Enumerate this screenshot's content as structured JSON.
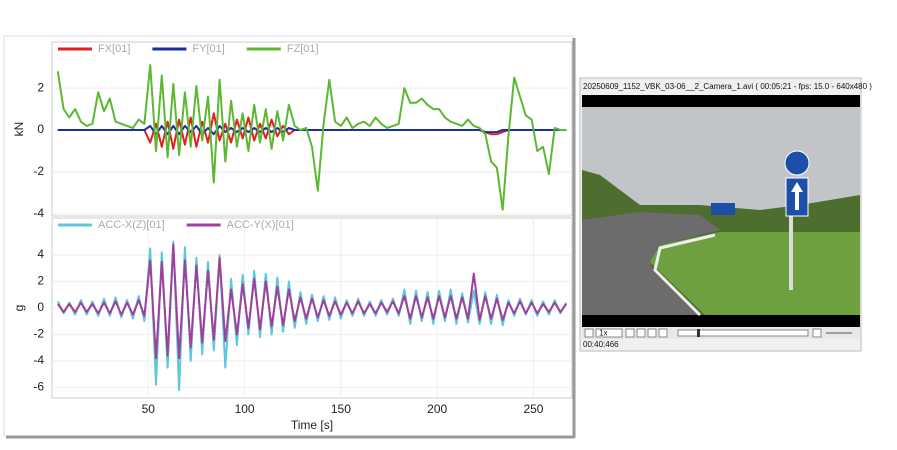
{
  "chart_data": [
    {
      "type": "line",
      "y_label": "kN",
      "x": [
        3,
        6,
        9,
        12,
        15,
        18,
        21,
        24,
        27,
        30,
        33,
        36,
        39,
        42,
        45,
        48,
        51,
        54,
        57,
        60,
        63,
        66,
        69,
        72,
        75,
        78,
        81,
        84,
        87,
        90,
        93,
        96,
        99,
        102,
        105,
        108,
        111,
        114,
        117,
        120,
        123,
        126,
        129,
        132,
        135,
        138,
        141,
        144,
        147,
        150,
        153,
        156,
        159,
        162,
        165,
        168,
        171,
        174,
        177,
        180,
        183,
        186,
        189,
        192,
        195,
        198,
        201,
        204,
        207,
        210,
        213,
        216,
        219,
        222,
        225,
        228,
        231,
        234,
        237,
        240,
        243,
        246,
        249,
        252,
        255,
        258,
        261,
        264,
        267
      ],
      "series": [
        {
          "name": "FX[01]",
          "color": "#e02020",
          "values": [
            0,
            0,
            0,
            0,
            0,
            0,
            0,
            0,
            0,
            0,
            0,
            0,
            0,
            0,
            0,
            0,
            -0.6,
            0.3,
            -0.8,
            0.4,
            -0.9,
            0.5,
            -0.7,
            0.6,
            -0.8,
            0.4,
            -0.6,
            0.8,
            -0.5,
            0.3,
            -0.6,
            0.5,
            -0.4,
            0.6,
            -0.5,
            0.3,
            -0.4,
            0.5,
            -0.3,
            0.2,
            -0.2,
            0,
            0,
            0,
            0,
            0,
            0,
            0,
            0,
            0,
            0,
            0,
            0,
            0,
            0,
            0,
            0,
            0,
            0,
            0,
            0,
            0,
            0,
            0,
            0,
            0,
            0,
            0,
            0,
            0,
            0,
            0,
            0,
            0,
            -0.1,
            -0.2,
            -0.2,
            -0.1,
            0,
            0,
            0,
            0,
            0,
            0,
            0,
            0,
            0,
            0,
            0
          ]
        },
        {
          "name": "FY[01]",
          "color": "#1a2fa0",
          "values": [
            0,
            0,
            0,
            0,
            0,
            0,
            0,
            0,
            0,
            0,
            0,
            0,
            0,
            0,
            0,
            0,
            0.2,
            -0.2,
            0.2,
            -0.2,
            0.2,
            -0.2,
            0.2,
            -0.1,
            0.2,
            -0.2,
            0.1,
            -0.2,
            0.2,
            -0.1,
            0.1,
            -0.1,
            0.1,
            -0.1,
            0.1,
            -0.1,
            0.1,
            -0.1,
            0.1,
            -0.1,
            0.1,
            0,
            0,
            0,
            0,
            0,
            0,
            0,
            0,
            0,
            0,
            0,
            0,
            0,
            0,
            0,
            0,
            0,
            0,
            0,
            0,
            0,
            0,
            0,
            0,
            0,
            0,
            0,
            0,
            0,
            0,
            0,
            0,
            0,
            -0.1,
            -0.1,
            -0.1,
            0,
            0,
            0,
            0,
            0,
            0,
            0,
            0,
            0,
            0,
            0,
            0
          ]
        },
        {
          "name": "FZ[01]",
          "color": "#5cb832",
          "values": [
            2.8,
            1.0,
            0.6,
            1.0,
            0.4,
            0.2,
            0.3,
            1.8,
            0.9,
            1.5,
            0.4,
            0.3,
            0.2,
            0.1,
            0.5,
            0.3,
            3.1,
            -1.0,
            2.6,
            -1.3,
            2.2,
            -1.2,
            1.8,
            -0.8,
            2.1,
            -0.5,
            1.6,
            -2.5,
            2.4,
            -1.5,
            1.4,
            -0.8,
            0.8,
            -1.0,
            1.2,
            -0.6,
            1.0,
            -0.9,
            0.9,
            -0.5,
            1.2,
            0.2,
            0.0,
            0.1,
            -0.8,
            -2.9,
            0.3,
            2.4,
            0.4,
            0.2,
            0.6,
            0.1,
            0.3,
            0.4,
            0.2,
            0.6,
            0.3,
            0.1,
            0.2,
            0.3,
            2.0,
            1.3,
            1.3,
            1.5,
            1.2,
            1.0,
            1.0,
            0.6,
            0.4,
            0.3,
            0.2,
            0.5,
            0.2,
            0.1,
            -0.2,
            -1.5,
            -1.8,
            -3.8,
            -0.3,
            2.5,
            1.6,
            0.7,
            0.5,
            -1.0,
            -0.8,
            -2.1,
            0.1,
            0.0,
            0.0
          ]
        }
      ],
      "xlim": [
        0,
        270
      ],
      "ylim": [
        -4.1,
        4.2
      ],
      "yticks": [
        -4,
        -2,
        0,
        2
      ]
    },
    {
      "type": "line",
      "y_label": "g",
      "x_label": "Time [s]",
      "x": [
        3,
        6,
        9,
        12,
        15,
        18,
        21,
        24,
        27,
        30,
        33,
        36,
        39,
        42,
        45,
        48,
        51,
        54,
        57,
        60,
        63,
        66,
        69,
        72,
        75,
        78,
        81,
        84,
        87,
        90,
        93,
        96,
        99,
        102,
        105,
        108,
        111,
        114,
        117,
        120,
        123,
        126,
        129,
        132,
        135,
        138,
        141,
        144,
        147,
        150,
        153,
        156,
        159,
        162,
        165,
        168,
        171,
        174,
        177,
        180,
        183,
        186,
        189,
        192,
        195,
        198,
        201,
        204,
        207,
        210,
        213,
        216,
        219,
        222,
        225,
        228,
        231,
        234,
        237,
        240,
        243,
        246,
        249,
        252,
        255,
        258,
        261,
        264,
        267
      ],
      "series": [
        {
          "name": "ACC-X(Z)[01]",
          "color": "#5cc8d8",
          "values": [
            0.5,
            -0.4,
            0.4,
            -0.5,
            0.6,
            -0.5,
            0.5,
            -0.6,
            0.7,
            -0.6,
            0.8,
            -0.7,
            0.6,
            -0.8,
            0.9,
            -1.0,
            4.5,
            -5.8,
            4.2,
            -4.5,
            5.0,
            -6.2,
            4.6,
            -4.0,
            3.8,
            -3.5,
            3.5,
            -3.2,
            4.0,
            -4.5,
            2.2,
            -2.8,
            2.5,
            -2.0,
            2.8,
            -2.2,
            2.6,
            -2.0,
            2.3,
            -1.8,
            2.0,
            -1.5,
            1.2,
            -1.2,
            1.0,
            -1.0,
            0.9,
            -0.9,
            0.8,
            -0.8,
            0.6,
            -0.6,
            0.7,
            -0.6,
            0.5,
            -0.6,
            0.6,
            -0.5,
            0.7,
            -0.6,
            1.4,
            -1.2,
            1.3,
            -1.0,
            1.2,
            -1.2,
            1.3,
            -1.0,
            1.4,
            -1.2,
            1.1,
            -1.1,
            1.3,
            -1.2,
            1.2,
            -1.2,
            1.0,
            -1.3,
            0.6,
            -0.6,
            0.7,
            -0.5,
            0.6,
            -0.6,
            0.5,
            -0.5,
            0.6,
            -0.4,
            0.4
          ]
        },
        {
          "name": "ACC-Y(X)[01]",
          "color": "#a0409a",
          "values": [
            0.3,
            -0.3,
            0.3,
            -0.3,
            0.4,
            -0.3,
            0.3,
            -0.4,
            0.4,
            -0.4,
            0.5,
            -0.5,
            0.4,
            -0.5,
            0.6,
            -0.6,
            3.6,
            -3.8,
            3.5,
            -3.6,
            4.8,
            -3.8,
            3.6,
            -3.0,
            3.2,
            -2.6,
            2.8,
            -2.4,
            3.8,
            -2.5,
            1.4,
            -2.0,
            1.8,
            -1.5,
            2.2,
            -1.6,
            2.0,
            -1.4,
            1.6,
            -1.3,
            1.4,
            -1.0,
            0.8,
            -0.8,
            0.7,
            -0.7,
            0.6,
            -0.6,
            0.5,
            -0.5,
            0.4,
            -0.4,
            0.5,
            -0.4,
            0.3,
            -0.4,
            0.4,
            -0.3,
            0.5,
            -0.4,
            0.9,
            -0.8,
            0.9,
            -0.7,
            0.8,
            -0.8,
            0.9,
            -0.7,
            0.9,
            -0.8,
            0.8,
            -0.8,
            2.6,
            -0.9,
            0.9,
            -0.8,
            0.7,
            -0.9,
            0.4,
            -0.4,
            0.5,
            -0.4,
            0.4,
            -0.4,
            0.3,
            -0.3,
            0.4,
            -0.3,
            0.3
          ]
        }
      ],
      "xlim": [
        0,
        270
      ],
      "xticks": [
        50,
        100,
        150,
        200,
        250
      ],
      "ylim": [
        -6.8,
        6.8
      ],
      "yticks": [
        -6,
        -4,
        -2,
        0,
        2,
        4
      ]
    }
  ],
  "video": {
    "title": "20250609_1152_VBK_03-06__2_Camera_1.avi ( 00:05:21 - fps: 15.0 - 640x480 )",
    "speed": "1x",
    "time": "00:40:466"
  }
}
